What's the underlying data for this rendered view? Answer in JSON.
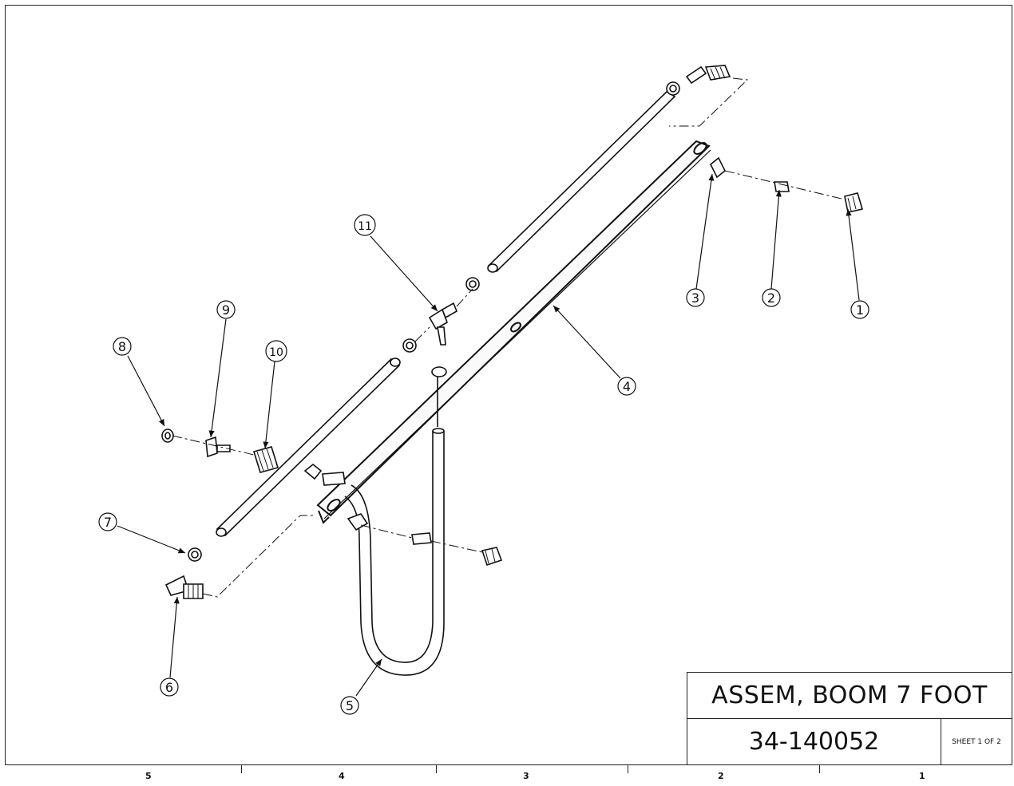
{
  "title_block": {
    "title": "ASSEM, BOOM 7 FOOT",
    "number": "34-140052",
    "sheet": "SHEET 1 OF 2"
  },
  "zones": [
    "5",
    "4",
    "3",
    "2",
    "1"
  ],
  "balloons": [
    {
      "id": "b1",
      "label": "1"
    },
    {
      "id": "b2",
      "label": "2"
    },
    {
      "id": "b3",
      "label": "3"
    },
    {
      "id": "b4",
      "label": "4"
    },
    {
      "id": "b5",
      "label": "5"
    },
    {
      "id": "b6",
      "label": "6"
    },
    {
      "id": "b7",
      "label": "7"
    },
    {
      "id": "b8",
      "label": "8"
    },
    {
      "id": "b9",
      "label": "9"
    },
    {
      "id": "b10",
      "label": "10"
    },
    {
      "id": "b11",
      "label": "11"
    }
  ]
}
